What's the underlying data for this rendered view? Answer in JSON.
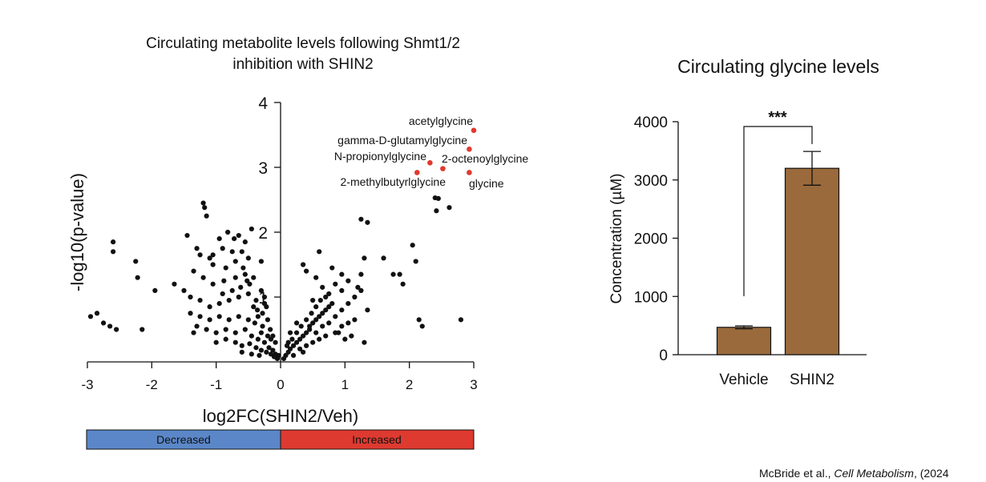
{
  "chart_data": [
    {
      "type": "scatter",
      "title_line1": "Circulating metabolite levels following Shmt1/2",
      "title_line2": "inhibition with SHIN2",
      "xlabel": "log2FC(SHIN2/Veh)",
      "ylabel": "-log10(p-value)",
      "xlim": [
        -3,
        3
      ],
      "ylim": [
        0,
        4
      ],
      "xticks": [
        "-3",
        "-2",
        "-1",
        "0",
        "1",
        "2",
        "3"
      ],
      "yticks": [
        "1",
        "2",
        "3",
        "4"
      ],
      "grid": false,
      "legend_bar": {
        "decreased": "Decreased",
        "increased": "Increased",
        "decreased_color": "#5b87c8",
        "increased_color": "#de3a30"
      },
      "point_color": "#111111",
      "highlight_color": "#e0392f",
      "highlighted": [
        {
          "label": "acetylglycine",
          "x": 3.0,
          "y": 3.57
        },
        {
          "label": "gamma-D-glutamylglycine",
          "x": 2.93,
          "y": 3.28
        },
        {
          "label": "N-propionylglycine",
          "x": 2.32,
          "y": 3.07
        },
        {
          "label": "2-octenoylglycine",
          "x": 2.52,
          "y": 2.98
        },
        {
          "label": "2-methylbutyrlglycine",
          "x": 2.12,
          "y": 2.92
        },
        {
          "label": "glycine",
          "x": 2.93,
          "y": 2.92
        }
      ],
      "points": [
        [
          -2.95,
          0.7
        ],
        [
          -2.85,
          0.75
        ],
        [
          -2.75,
          0.6
        ],
        [
          -2.65,
          0.55
        ],
        [
          -2.6,
          1.85
        ],
        [
          -2.55,
          0.5
        ],
        [
          -2.6,
          1.7
        ],
        [
          -2.25,
          1.55
        ],
        [
          -2.22,
          1.3
        ],
        [
          -2.15,
          0.5
        ],
        [
          -1.95,
          1.1
        ],
        [
          -1.65,
          1.2
        ],
        [
          -1.45,
          1.95
        ],
        [
          -1.35,
          0.45
        ],
        [
          -1.2,
          2.45
        ],
        [
          -1.18,
          2.38
        ],
        [
          -1.15,
          2.25
        ],
        [
          -1.3,
          1.75
        ],
        [
          -1.25,
          1.65
        ],
        [
          -1.1,
          1.6
        ],
        [
          -1.05,
          1.5
        ],
        [
          -0.95,
          1.9
        ],
        [
          -0.82,
          2.0
        ],
        [
          -0.72,
          1.9
        ],
        [
          -0.65,
          1.95
        ],
        [
          -0.55,
          1.85
        ],
        [
          -0.45,
          2.05
        ],
        [
          -0.3,
          1.55
        ],
        [
          -0.6,
          1.7
        ],
        [
          -0.75,
          1.7
        ],
        [
          -0.9,
          1.75
        ],
        [
          -0.5,
          1.6
        ],
        [
          -1.35,
          1.4
        ],
        [
          -1.2,
          1.3
        ],
        [
          -1.05,
          1.2
        ],
        [
          -0.88,
          1.25
        ],
        [
          -0.7,
          1.3
        ],
        [
          -0.55,
          1.35
        ],
        [
          -0.42,
          1.3
        ],
        [
          -0.3,
          1.1
        ],
        [
          -1.5,
          1.1
        ],
        [
          -1.4,
          1.0
        ],
        [
          -1.25,
          0.95
        ],
        [
          -1.1,
          0.85
        ],
        [
          -0.95,
          0.9
        ],
        [
          -0.8,
          0.95
        ],
        [
          -0.65,
          1.0
        ],
        [
          -0.5,
          1.05
        ],
        [
          -0.38,
          0.95
        ],
        [
          -0.25,
          0.9
        ],
        [
          -1.4,
          0.75
        ],
        [
          -1.25,
          0.7
        ],
        [
          -1.1,
          0.65
        ],
        [
          -0.95,
          0.7
        ],
        [
          -0.8,
          0.65
        ],
        [
          -0.65,
          0.7
        ],
        [
          -0.5,
          0.65
        ],
        [
          -0.4,
          0.6
        ],
        [
          -0.28,
          0.55
        ],
        [
          -1.3,
          0.55
        ],
        [
          -1.15,
          0.5
        ],
        [
          -1.0,
          0.45
        ],
        [
          -0.85,
          0.5
        ],
        [
          -0.7,
          0.45
        ],
        [
          -0.55,
          0.5
        ],
        [
          -0.45,
          0.4
        ],
        [
          -0.35,
          0.35
        ],
        [
          -0.25,
          0.3
        ],
        [
          -1.0,
          0.3
        ],
        [
          -0.85,
          0.35
        ],
        [
          -0.7,
          0.3
        ],
        [
          -0.6,
          0.25
        ],
        [
          -0.48,
          0.28
        ],
        [
          -0.38,
          0.22
        ],
        [
          -0.3,
          0.18
        ],
        [
          -0.22,
          0.15
        ],
        [
          -0.15,
          0.12
        ],
        [
          -0.1,
          0.08
        ],
        [
          -0.05,
          0.05
        ],
        [
          -0.18,
          0.22
        ],
        [
          -0.12,
          0.18
        ],
        [
          -0.08,
          0.12
        ],
        [
          -0.03,
          0.1
        ],
        [
          -0.6,
          0.15
        ],
        [
          -0.45,
          0.12
        ],
        [
          -0.33,
          0.1
        ],
        [
          -0.9,
          1.05
        ],
        [
          -0.75,
          1.1
        ],
        [
          -0.62,
          1.15
        ],
        [
          -0.48,
          1.2
        ],
        [
          -0.36,
          0.8
        ],
        [
          -0.28,
          0.75
        ],
        [
          -0.2,
          0.65
        ],
        [
          -0.16,
          0.5
        ],
        [
          -0.12,
          0.4
        ],
        [
          -0.08,
          0.3
        ],
        [
          -1.05,
          1.65
        ],
        [
          -0.85,
          1.45
        ],
        [
          -0.7,
          1.55
        ],
        [
          -0.58,
          1.45
        ],
        [
          -0.52,
          1.25
        ],
        [
          -0.42,
          0.85
        ],
        [
          -0.35,
          0.7
        ],
        [
          -0.3,
          0.45
        ],
        [
          -0.2,
          0.4
        ],
        [
          -0.15,
          0.35
        ],
        [
          -0.25,
          1.0
        ],
        [
          -0.22,
          0.85
        ],
        [
          0.05,
          0.05
        ],
        [
          0.08,
          0.1
        ],
        [
          0.12,
          0.15
        ],
        [
          0.15,
          0.2
        ],
        [
          0.2,
          0.25
        ],
        [
          0.25,
          0.3
        ],
        [
          0.3,
          0.35
        ],
        [
          0.35,
          0.4
        ],
        [
          0.4,
          0.45
        ],
        [
          0.45,
          0.55
        ],
        [
          0.5,
          0.6
        ],
        [
          0.55,
          0.65
        ],
        [
          0.6,
          0.7
        ],
        [
          0.65,
          0.75
        ],
        [
          0.7,
          0.8
        ],
        [
          0.75,
          0.85
        ],
        [
          0.8,
          0.9
        ],
        [
          0.1,
          0.25
        ],
        [
          0.18,
          0.35
        ],
        [
          0.25,
          0.45
        ],
        [
          0.32,
          0.55
        ],
        [
          0.4,
          0.65
        ],
        [
          0.48,
          0.75
        ],
        [
          0.55,
          0.85
        ],
        [
          0.62,
          0.95
        ],
        [
          0.7,
          1.0
        ],
        [
          0.3,
          0.2
        ],
        [
          0.4,
          0.25
        ],
        [
          0.5,
          0.3
        ],
        [
          0.6,
          0.35
        ],
        [
          0.7,
          0.4
        ],
        [
          0.85,
          0.45
        ],
        [
          0.95,
          0.55
        ],
        [
          1.05,
          0.6
        ],
        [
          1.15,
          0.65
        ],
        [
          0.2,
          0.1
        ],
        [
          0.35,
          0.15
        ],
        [
          0.45,
          0.5
        ],
        [
          0.55,
          0.45
        ],
        [
          0.65,
          0.55
        ],
        [
          0.75,
          0.6
        ],
        [
          0.85,
          0.7
        ],
        [
          0.95,
          0.8
        ],
        [
          1.05,
          0.9
        ],
        [
          1.15,
          1.0
        ],
        [
          1.25,
          1.1
        ],
        [
          0.35,
          1.5
        ],
        [
          0.4,
          1.4
        ],
        [
          0.55,
          1.3
        ],
        [
          0.65,
          1.15
        ],
        [
          0.75,
          1.05
        ],
        [
          0.85,
          1.2
        ],
        [
          0.95,
          1.1
        ],
        [
          1.05,
          1.25
        ],
        [
          1.2,
          1.15
        ],
        [
          0.6,
          1.7
        ],
        [
          0.8,
          1.45
        ],
        [
          0.95,
          1.35
        ],
        [
          1.25,
          1.35
        ],
        [
          1.3,
          1.6
        ],
        [
          1.35,
          2.15
        ],
        [
          1.25,
          2.2
        ],
        [
          1.35,
          0.8
        ],
        [
          1.6,
          1.6
        ],
        [
          1.75,
          1.35
        ],
        [
          1.85,
          1.35
        ],
        [
          2.05,
          1.8
        ],
        [
          2.1,
          1.55
        ],
        [
          2.15,
          0.65
        ],
        [
          2.2,
          0.55
        ],
        [
          2.8,
          0.65
        ],
        [
          2.4,
          2.53
        ],
        [
          2.45,
          2.52
        ],
        [
          2.42,
          2.33
        ],
        [
          2.62,
          2.38
        ],
        [
          1.9,
          1.2
        ],
        [
          1.3,
          0.3
        ],
        [
          0.9,
          0.45
        ],
        [
          1.0,
          0.35
        ],
        [
          1.1,
          0.4
        ],
        [
          0.25,
          0.6
        ],
        [
          0.15,
          0.45
        ],
        [
          0.12,
          0.3
        ],
        [
          0.5,
          0.95
        ]
      ]
    },
    {
      "type": "bar",
      "title": "Circulating glycine levels",
      "categories": [
        "Vehicle",
        "SHIN2"
      ],
      "values": [
        470,
        3200
      ],
      "errors": [
        25,
        290
      ],
      "ylabel": "Concentration (µM)",
      "ylim": [
        0,
        4000
      ],
      "yticks": [
        "0",
        "1000",
        "2000",
        "3000",
        "4000"
      ],
      "significance": "***",
      "bar_color": "#9a6a3c"
    }
  ],
  "citation": {
    "authors": "McBride et al., ",
    "journal": "Cell Metabolism",
    "suffix": ", (2024"
  }
}
